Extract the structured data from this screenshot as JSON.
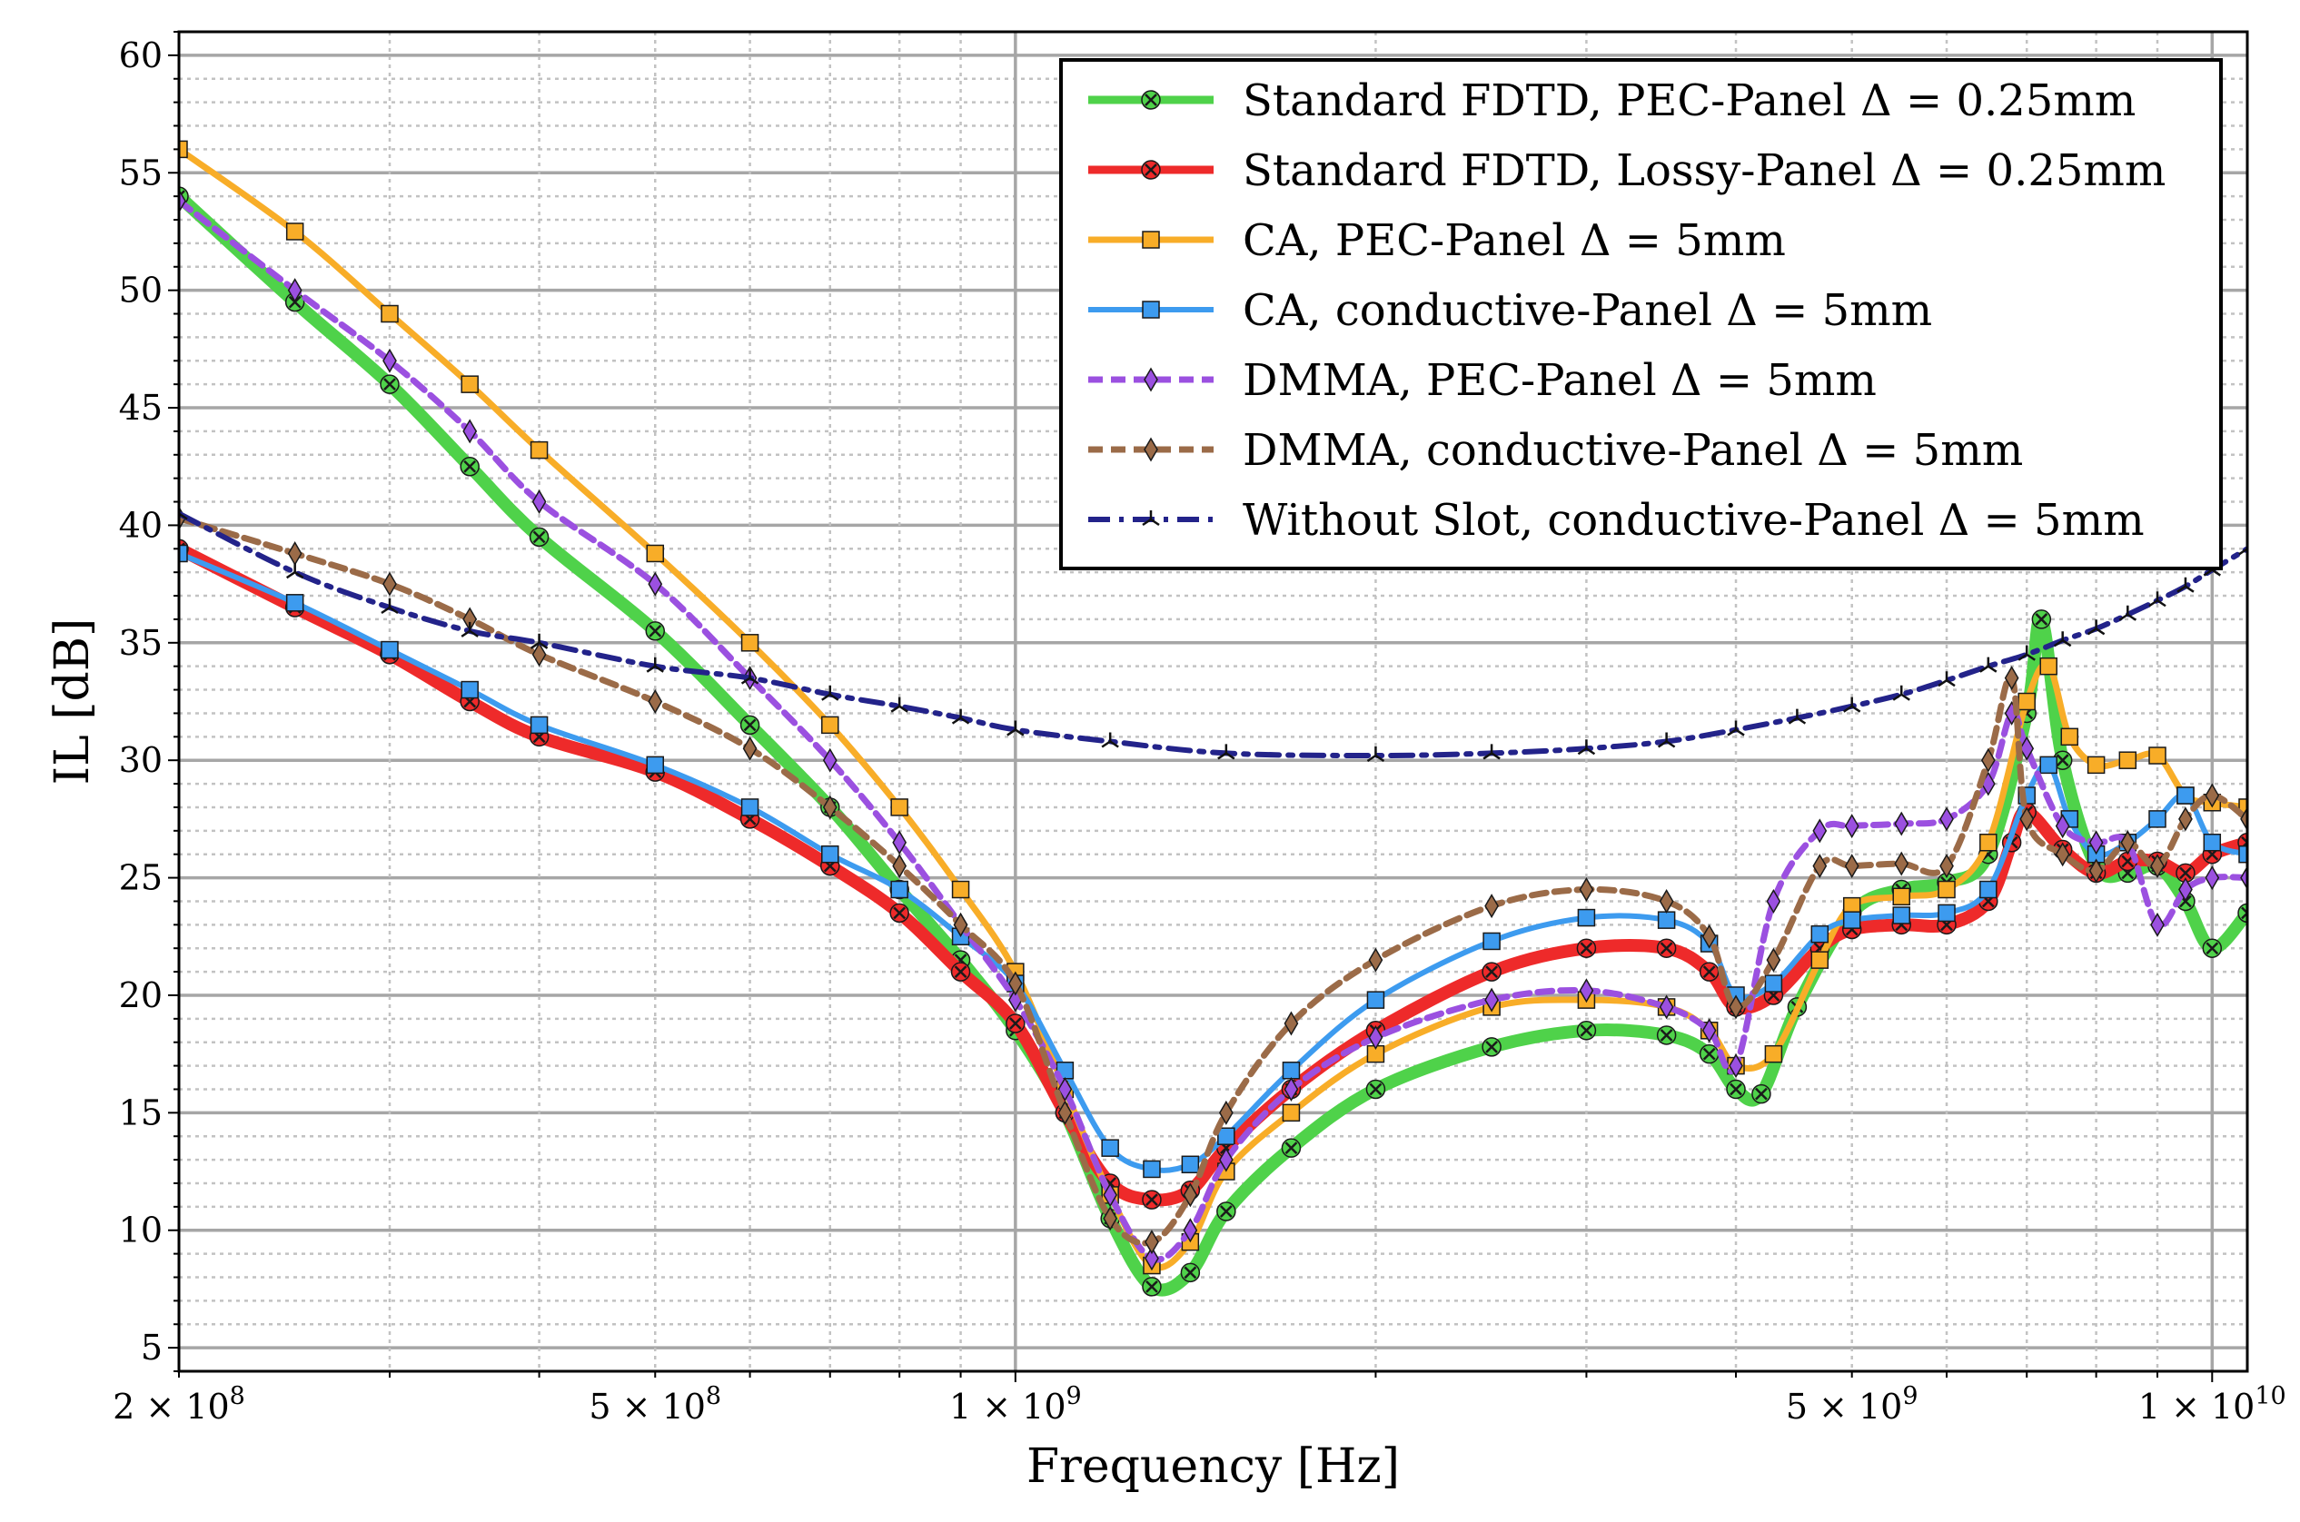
{
  "chart_data": {
    "type": "line",
    "xscale": "log",
    "xlabel": "Frequency [Hz]",
    "ylabel": "IL [dB]",
    "xlim": [
      200000000.0,
      10700000000.0
    ],
    "ylim": [
      4,
      61
    ],
    "grid": true,
    "legend_position": "top-right",
    "xticks": [
      {
        "value": 200000000.0,
        "base": "2 × 10",
        "exp": "8"
      },
      {
        "value": 500000000.0,
        "base": "5 × 10",
        "exp": "8"
      },
      {
        "value": 1000000000.0,
        "base": "1 × 10",
        "exp": "9"
      },
      {
        "value": 5000000000.0,
        "base": "5 × 10",
        "exp": "9"
      },
      {
        "value": 10000000000.0,
        "base": "1 × 10",
        "exp": "10"
      }
    ],
    "yticks": [
      5,
      10,
      15,
      20,
      25,
      30,
      35,
      40,
      45,
      50,
      55,
      60
    ],
    "series": [
      {
        "name": "Standard FDTD, PEC-Panel Δ = 0.25mm",
        "color": "#4fd24a",
        "style": "solid",
        "marker": "x-circle",
        "x": [
          200000000.0,
          250000000.0,
          300000000.0,
          350000000.0,
          400000000.0,
          500000000.0,
          600000000.0,
          700000000.0,
          800000000.0,
          900000000.0,
          1000000000.0,
          1100000000.0,
          1200000000.0,
          1300000000.0,
          1400000000.0,
          1500000000.0,
          1700000000.0,
          2000000000.0,
          2500000000.0,
          3000000000.0,
          3500000000.0,
          3800000000.0,
          4000000000.0,
          4200000000.0,
          4500000000.0,
          5000000000.0,
          5500000000.0,
          6000000000.0,
          6500000000.0,
          7000000000.0,
          7200000000.0,
          7500000000.0,
          8000000000.0,
          8500000000.0,
          9000000000.0,
          9500000000.0,
          10000000000.0,
          10700000000.0
        ],
        "values": [
          54,
          49.5,
          46,
          42.5,
          39.5,
          35.5,
          31.5,
          28,
          24.5,
          21.5,
          18.5,
          15,
          10.5,
          7.6,
          8.2,
          10.8,
          13.5,
          16,
          17.8,
          18.5,
          18.3,
          17.5,
          16,
          15.8,
          19.5,
          23.5,
          24.5,
          24.8,
          26,
          32,
          36,
          30,
          25.5,
          25.2,
          25.5,
          24,
          22,
          23.5
        ]
      },
      {
        "name": "Standard FDTD, Lossy-Panel Δ = 0.25mm",
        "color": "#ee2a2a",
        "style": "solid",
        "marker": "x-circle",
        "x": [
          200000000.0,
          250000000.0,
          300000000.0,
          350000000.0,
          400000000.0,
          500000000.0,
          600000000.0,
          700000000.0,
          800000000.0,
          900000000.0,
          1000000000.0,
          1100000000.0,
          1200000000.0,
          1300000000.0,
          1400000000.0,
          1500000000.0,
          1700000000.0,
          2000000000.0,
          2500000000.0,
          3000000000.0,
          3500000000.0,
          3800000000.0,
          4000000000.0,
          4300000000.0,
          4700000000.0,
          5000000000.0,
          5500000000.0,
          6000000000.0,
          6500000000.0,
          6800000000.0,
          7000000000.0,
          7500000000.0,
          8000000000.0,
          8500000000.0,
          9000000000.0,
          9500000000.0,
          10000000000.0,
          10700000000.0
        ],
        "values": [
          39,
          36.5,
          34.5,
          32.5,
          31,
          29.5,
          27.5,
          25.5,
          23.5,
          21,
          18.8,
          15,
          12,
          11.3,
          11.7,
          13.5,
          16,
          18.5,
          21,
          22,
          22,
          21,
          19.5,
          20,
          22,
          22.8,
          23,
          23,
          24,
          26.5,
          27.8,
          26.2,
          25.2,
          25.7,
          25.7,
          25.2,
          26,
          26.5
        ]
      },
      {
        "name": "CA, PEC-Panel Δ = 5mm",
        "color": "#f8ad28",
        "style": "solid",
        "marker": "square",
        "x": [
          200000000.0,
          250000000.0,
          300000000.0,
          350000000.0,
          400000000.0,
          500000000.0,
          600000000.0,
          700000000.0,
          800000000.0,
          900000000.0,
          1000000000.0,
          1100000000.0,
          1200000000.0,
          1300000000.0,
          1400000000.0,
          1500000000.0,
          1700000000.0,
          2000000000.0,
          2500000000.0,
          3000000000.0,
          3500000000.0,
          3800000000.0,
          4000000000.0,
          4300000000.0,
          4700000000.0,
          5000000000.0,
          5500000000.0,
          6000000000.0,
          6500000000.0,
          7000000000.0,
          7300000000.0,
          7600000000.0,
          8000000000.0,
          8500000000.0,
          9000000000.0,
          9500000000.0,
          10000000000.0,
          10700000000.0
        ],
        "values": [
          56,
          52.5,
          49,
          46,
          43.2,
          38.8,
          35,
          31.5,
          28,
          24.5,
          21,
          16,
          11.5,
          8.5,
          9.5,
          12.5,
          15,
          17.5,
          19.5,
          19.8,
          19.5,
          18.5,
          17,
          17.5,
          21.5,
          23.8,
          24.2,
          24.5,
          26.5,
          32.5,
          34,
          31,
          29.8,
          30,
          30.2,
          28.5,
          28.2,
          28
        ]
      },
      {
        "name": "CA, conductive-Panel Δ = 5mm",
        "color": "#3d9bef",
        "style": "solid",
        "marker": "square",
        "x": [
          200000000.0,
          250000000.0,
          300000000.0,
          350000000.0,
          400000000.0,
          500000000.0,
          600000000.0,
          700000000.0,
          800000000.0,
          900000000.0,
          1000000000.0,
          1100000000.0,
          1200000000.0,
          1300000000.0,
          1400000000.0,
          1500000000.0,
          1700000000.0,
          2000000000.0,
          2500000000.0,
          3000000000.0,
          3500000000.0,
          3800000000.0,
          4000000000.0,
          4300000000.0,
          4700000000.0,
          5000000000.0,
          5500000000.0,
          6000000000.0,
          6500000000.0,
          7000000000.0,
          7300000000.0,
          7600000000.0,
          8000000000.0,
          8500000000.0,
          9000000000.0,
          9500000000.0,
          10000000000.0,
          10700000000.0
        ],
        "values": [
          38.8,
          36.7,
          34.7,
          33,
          31.5,
          29.8,
          28,
          26,
          24.5,
          22.5,
          20.5,
          16.8,
          13.5,
          12.6,
          12.8,
          14,
          16.8,
          19.8,
          22.3,
          23.3,
          23.2,
          22.2,
          20,
          20.5,
          22.6,
          23.2,
          23.4,
          23.5,
          24.5,
          28.5,
          29.8,
          27.5,
          26,
          26.5,
          27.5,
          28.5,
          26.5,
          26
        ]
      },
      {
        "name": "DMMA, PEC-Panel Δ = 5mm",
        "color": "#9b50e0",
        "style": "dashed",
        "marker": "diamond",
        "x": [
          200000000.0,
          250000000.0,
          300000000.0,
          350000000.0,
          400000000.0,
          500000000.0,
          600000000.0,
          700000000.0,
          800000000.0,
          900000000.0,
          1000000000.0,
          1100000000.0,
          1200000000.0,
          1300000000.0,
          1400000000.0,
          1500000000.0,
          1700000000.0,
          2000000000.0,
          2500000000.0,
          3000000000.0,
          3500000000.0,
          3800000000.0,
          4000000000.0,
          4300000000.0,
          4700000000.0,
          5000000000.0,
          5500000000.0,
          6000000000.0,
          6500000000.0,
          6800000000.0,
          7000000000.0,
          7500000000.0,
          8000000000.0,
          8500000000.0,
          9000000000.0,
          9500000000.0,
          10000000000.0,
          10700000000.0
        ],
        "values": [
          53.8,
          50,
          47,
          44,
          41,
          37.5,
          33.5,
          30,
          26.5,
          23,
          19.8,
          16,
          11.5,
          8.8,
          10,
          13,
          16,
          18.2,
          19.8,
          20.2,
          19.5,
          18.5,
          17,
          24,
          27,
          27.2,
          27.3,
          27.5,
          29,
          32,
          30.5,
          27.2,
          26.5,
          26.5,
          23,
          24.5,
          25,
          25
        ]
      },
      {
        "name": "DMMA, conductive-Panel Δ = 5mm",
        "color": "#9b6b48",
        "style": "dashed",
        "marker": "diamond",
        "x": [
          200000000.0,
          250000000.0,
          300000000.0,
          350000000.0,
          400000000.0,
          500000000.0,
          600000000.0,
          700000000.0,
          800000000.0,
          900000000.0,
          1000000000.0,
          1100000000.0,
          1200000000.0,
          1300000000.0,
          1400000000.0,
          1500000000.0,
          1700000000.0,
          2000000000.0,
          2500000000.0,
          3000000000.0,
          3500000000.0,
          3800000000.0,
          4000000000.0,
          4300000000.0,
          4700000000.0,
          5000000000.0,
          5500000000.0,
          6000000000.0,
          6500000000.0,
          6800000000.0,
          7000000000.0,
          7500000000.0,
          8000000000.0,
          8500000000.0,
          9000000000.0,
          9500000000.0,
          10000000000.0,
          10700000000.0
        ],
        "values": [
          40.3,
          38.8,
          37.5,
          36,
          34.5,
          32.5,
          30.5,
          28,
          25.5,
          23,
          20.5,
          15,
          10.5,
          9.5,
          11.5,
          15,
          18.8,
          21.5,
          23.8,
          24.5,
          24,
          22.5,
          19.5,
          21.5,
          25.5,
          25.5,
          25.6,
          25.5,
          30,
          33.5,
          27.5,
          26,
          25.3,
          26.5,
          25.5,
          27.5,
          28.5,
          27.5
        ]
      },
      {
        "name": "Without Slot, conductive-Panel Δ = 5mm",
        "color": "#23238a",
        "style": "dashdot",
        "marker": "tri",
        "x": [
          200000000.0,
          250000000.0,
          300000000.0,
          350000000.0,
          400000000.0,
          500000000.0,
          600000000.0,
          700000000.0,
          800000000.0,
          900000000.0,
          1000000000.0,
          1200000000.0,
          1500000000.0,
          2000000000.0,
          2500000000.0,
          3000000000.0,
          3500000000.0,
          4000000000.0,
          4500000000.0,
          5000000000.0,
          5500000000.0,
          6000000000.0,
          6500000000.0,
          7000000000.0,
          7500000000.0,
          8000000000.0,
          8500000000.0,
          9000000000.0,
          9500000000.0,
          10000000000.0,
          10700000000.0
        ],
        "values": [
          40.5,
          38,
          36.5,
          35.5,
          35,
          34,
          33.5,
          32.8,
          32.3,
          31.8,
          31.3,
          30.8,
          30.3,
          30.2,
          30.3,
          30.5,
          30.8,
          31.3,
          31.8,
          32.3,
          32.8,
          33.4,
          34,
          34.5,
          35.1,
          35.6,
          36.2,
          36.8,
          37.4,
          38.1,
          39
        ]
      }
    ]
  }
}
